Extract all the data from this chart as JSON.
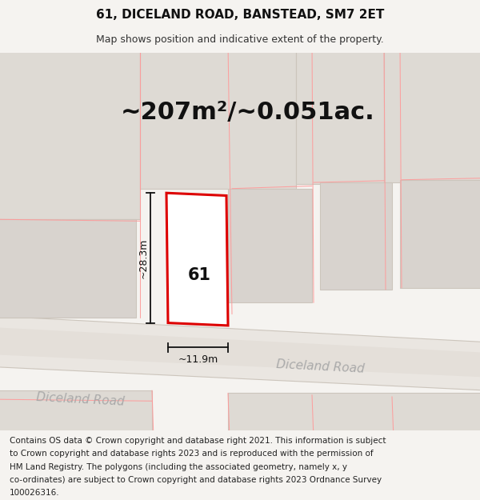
{
  "title": "61, DICELAND ROAD, BANSTEAD, SM7 2ET",
  "subtitle": "Map shows position and indicative extent of the property.",
  "area_text": "~207m²/~0.051ac.",
  "width_label": "~11.9m",
  "height_label": "~28.3m",
  "house_number": "61",
  "road_label": "Diceland Road",
  "footer_lines": [
    "Contains OS data © Crown copyright and database right 2021. This information is subject",
    "to Crown copyright and database rights 2023 and is reproduced with the permission of",
    "HM Land Registry. The polygons (including the associated geometry, namely x, y",
    "co-ordinates) are subject to Crown copyright and database rights 2023 Ordnance Survey",
    "100026316."
  ],
  "title_fontsize": 11,
  "subtitle_fontsize": 9,
  "area_fontsize": 22,
  "footer_fontsize": 7.5
}
